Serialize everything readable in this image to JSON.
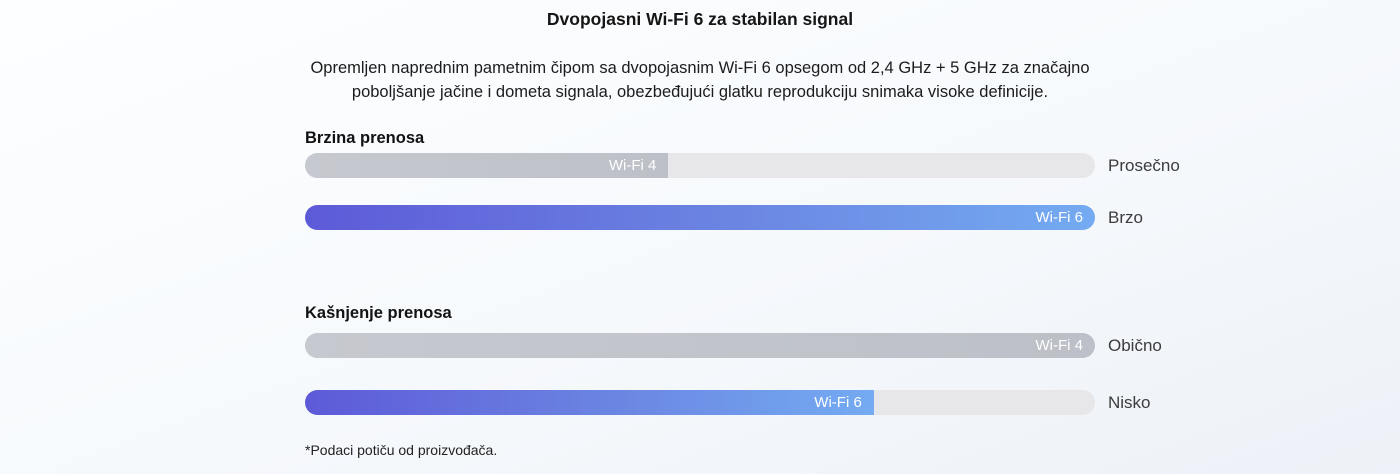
{
  "header": {
    "title": "Dvopojasni Wi-Fi 6 za stabilan signal",
    "description_lines": [
      "Opremljen naprednim pametnim čipom sa dvopojasnim Wi-Fi 6 opsegom od 2,4 GHz + 5 GHz za značajno",
      "poboljšanje jačine i dometa signala, obezbeđujući glatku reprodukciju snimaka visoke definicije."
    ]
  },
  "footnote": "*Podaci potiču od proizvođača.",
  "colors": {
    "wifi6_gradient_start": "#5d5ad8",
    "wifi6_gradient_end": "#74abf2",
    "wifi4_fill": "#c1c4cb",
    "track": "#e7e7e9"
  },
  "chart_data": [
    {
      "type": "bar",
      "title": "Brzina prenosa",
      "unit": "percent_of_track",
      "legend_position": "labels-inside-and-right",
      "bars": [
        {
          "label": "Wi-Fi 4",
          "value_percent": 46,
          "qualitative": "Prosečno",
          "style": "gray"
        },
        {
          "label": "Wi-Fi 6",
          "value_percent": 100,
          "qualitative": "Brzo",
          "style": "blue-gradient"
        }
      ]
    },
    {
      "type": "bar",
      "title": "Kašnjenje prenosa",
      "unit": "percent_of_track",
      "legend_position": "labels-inside-and-right",
      "bars": [
        {
          "label": "Wi-Fi 4",
          "value_percent": 100,
          "qualitative": "Obično",
          "style": "gray"
        },
        {
          "label": "Wi-Fi 6",
          "value_percent": 72,
          "qualitative": "Nisko",
          "style": "blue-gradient"
        }
      ]
    }
  ]
}
